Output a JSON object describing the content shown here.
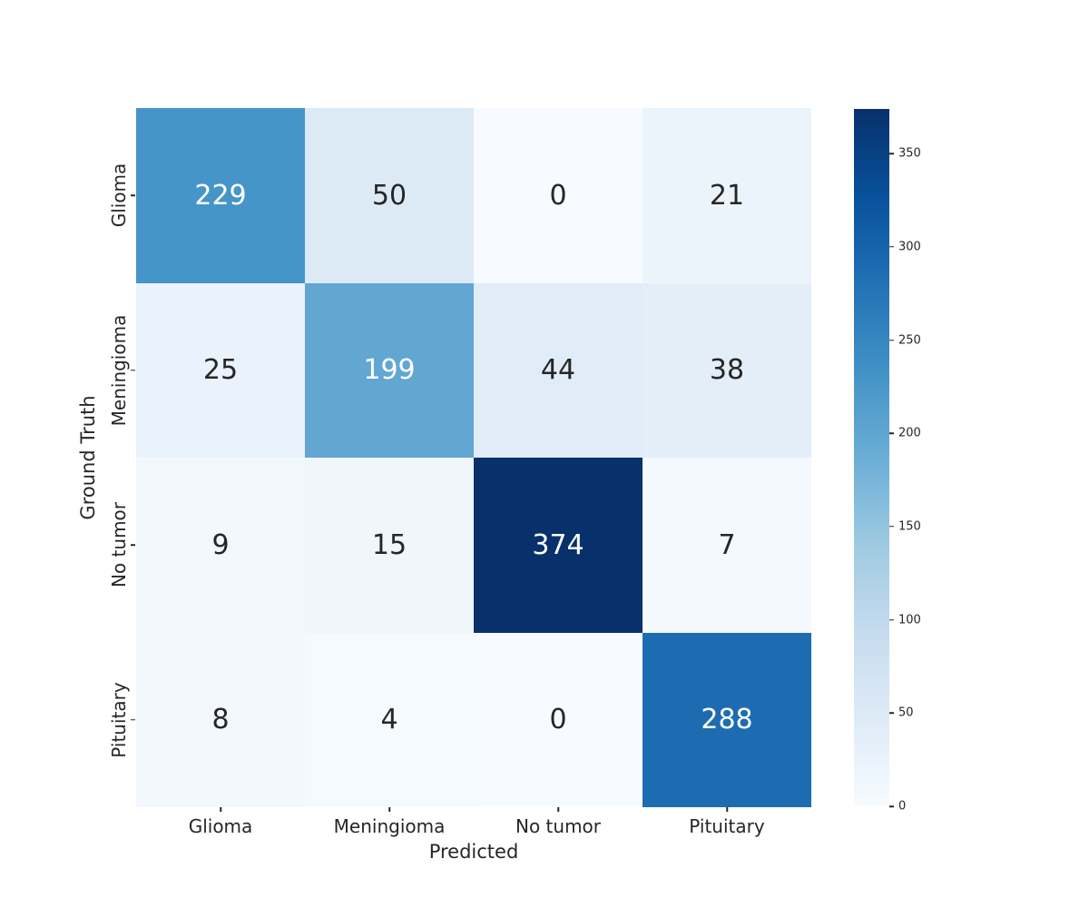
{
  "figure": {
    "background_color": "#ffffff",
    "tick_color": "#262626"
  },
  "chart_data": {
    "type": "heatmap",
    "title": "",
    "xlabel": "Predicted",
    "ylabel": "Ground Truth",
    "x_categories": [
      "Glioma",
      "Meningioma",
      "No tumor",
      "Pituitary"
    ],
    "y_categories": [
      "Glioma",
      "Meningioma",
      "No tumor",
      "Pituitary"
    ],
    "matrix": [
      [
        229,
        50,
        0,
        21
      ],
      [
        25,
        199,
        44,
        38
      ],
      [
        9,
        15,
        374,
        7
      ],
      [
        8,
        4,
        0,
        288
      ]
    ],
    "vmin": 0,
    "vmax": 374,
    "colormap": "Blues",
    "cell_colors": [
      [
        "#4695c8",
        "#dceaf6",
        "#f7fbff",
        "#ecf4fb"
      ],
      [
        "#eaf2fb",
        "#61a7d2",
        "#e0ecf8",
        "#e3eef9"
      ],
      [
        "#f2f8fe",
        "#eff6fc",
        "#08306b",
        "#f3f9fe"
      ],
      [
        "#f3f8fe",
        "#f5fafe",
        "#f7fbff",
        "#1d6cb1"
      ]
    ],
    "annot_color_on_dark": "#ffffff",
    "annot_color_on_light": "#262626",
    "colorbar": {
      "ticks": [
        0,
        50,
        100,
        150,
        200,
        250,
        300,
        350
      ],
      "gradient_stops_bottom_to_top": [
        "#f7fbff",
        "#deebf7",
        "#c6dbef",
        "#9ecae1",
        "#6baed6",
        "#4292c6",
        "#2171b5",
        "#08519c",
        "#08306b"
      ]
    }
  }
}
